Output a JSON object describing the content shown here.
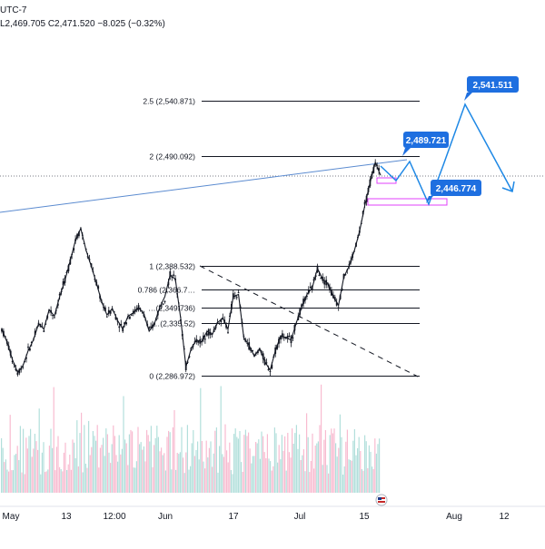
{
  "header": {
    "timezone": "UTC-7",
    "ohlc": "L2,469.705 C2,471.520 −8.025 (−0.32%)"
  },
  "colors": {
    "candle_up": "#131722",
    "candle_down": "#131722",
    "volume_up": "#b2dfdb",
    "volume_down": "#f8bbd0",
    "trendline": "#5b8bd0",
    "fib_line": "#131722",
    "projection": "#1e88e5",
    "callout_bg": "#1e6fe0",
    "zone": "#e040fb",
    "price_line": "#787b86"
  },
  "fib_levels": [
    {
      "label": "2.5 (2,540.871)",
      "price": 2540.871
    },
    {
      "label": "2 (2,490.092)",
      "price": 2490.092
    },
    {
      "label": "1 (2,388.532)",
      "price": 2388.532
    },
    {
      "label": "0.786 (2,366.7…",
      "price": 2366.79
    },
    {
      "label": "…(2,349.736)",
      "price": 2349.736
    },
    {
      "label": "…(2,335.52)",
      "price": 2335.52
    },
    {
      "label": "0 (2,286.972)",
      "price": 2286.972
    }
  ],
  "callouts": [
    {
      "label": "2,541.511",
      "price": 2541.511
    },
    {
      "label": "2,489.721",
      "price": 2489.721
    },
    {
      "label": "2,446.774",
      "price": 2446.774
    }
  ],
  "x_axis": {
    "labels": [
      "May",
      "13",
      "12:00",
      "Jun",
      "17",
      "Jul",
      "15",
      "Aug",
      "12"
    ]
  },
  "chart_data": {
    "type": "line",
    "title": "",
    "xlabel": "",
    "ylabel": "",
    "series": [
      {
        "values": [
          2330,
          2318,
          2302,
          2290,
          2296,
          2310,
          2320,
          2335,
          2330,
          2348,
          2342,
          2360,
          2375,
          2393,
          2412,
          2423,
          2403,
          2388,
          2372,
          2355,
          2343,
          2349,
          2338,
          2330,
          2342,
          2345,
          2350,
          2344,
          2328,
          2335,
          2350,
          2360,
          2380,
          2376,
          2340,
          2295,
          2312,
          2320,
          2318,
          2328,
          2325,
          2336,
          2340,
          2330,
          2360,
          2362,
          2322,
          2315,
          2305,
          2312,
          2300,
          2292,
          2310,
          2324,
          2322,
          2320,
          2336,
          2350,
          2362,
          2368,
          2386,
          2376,
          2372,
          2360,
          2352,
          2378,
          2388,
          2402,
          2420,
          2444,
          2465,
          2484,
          2472
        ]
      }
    ],
    "ylim": [
      2268,
      2580
    ]
  }
}
